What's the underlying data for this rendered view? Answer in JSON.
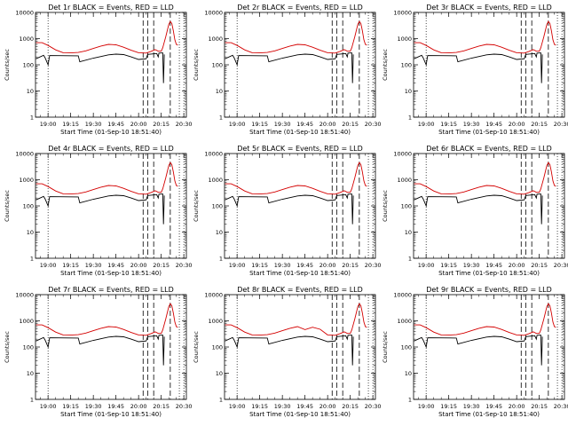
{
  "chart_data": [
    {
      "type": "line",
      "title": "Det 1r BLACK = Events, RED = LLD",
      "xlabel": "Start Time (01-Sep-10 18:51:40)",
      "ylabel": "Counts/sec",
      "variant": "normal"
    },
    {
      "type": "line",
      "title": "Det 2r BLACK = Events, RED = LLD",
      "xlabel": "Start Time (01-Sep-10 18:51:40)",
      "ylabel": "Counts/sec",
      "variant": "normal"
    },
    {
      "type": "line",
      "title": "Det 3r BLACK = Events, RED = LLD",
      "xlabel": "Start Time (01-Sep-10 18:51:40)",
      "ylabel": "Counts/sec",
      "variant": "normal"
    },
    {
      "type": "line",
      "title": "Det 4r BLACK = Events, RED = LLD",
      "xlabel": "Start Time (01-Sep-10 18:51:40)",
      "ylabel": "Counts/sec",
      "variant": "normal"
    },
    {
      "type": "line",
      "title": "Det 5r BLACK = Events, RED = LLD",
      "xlabel": "Start Time (01-Sep-10 18:51:40)",
      "ylabel": "Counts/sec",
      "variant": "normal"
    },
    {
      "type": "line",
      "title": "Det 6r BLACK = Events, RED = LLD",
      "xlabel": "Start Time (01-Sep-10 18:51:40)",
      "ylabel": "Counts/sec",
      "variant": "normal"
    },
    {
      "type": "line",
      "title": "Det 7r BLACK = Events, RED = LLD",
      "xlabel": "Start Time (01-Sep-10 18:51:40)",
      "ylabel": "Counts/sec",
      "variant": "normal"
    },
    {
      "type": "line",
      "title": "Det 8r BLACK = Events, RED = LLD",
      "xlabel": "Start Time (01-Sep-10 18:51:40)",
      "ylabel": "Counts/sec",
      "variant": "noisy"
    },
    {
      "type": "line",
      "title": "Det 9r BLACK = Events, RED = LLD",
      "xlabel": "Start Time (01-Sep-10 18:51:40)",
      "ylabel": "Counts/sec",
      "variant": "normal"
    }
  ],
  "shared": {
    "x_range": [
      "18:51:40",
      "20:31:40"
    ],
    "x_ticks": [
      "19:00",
      "19:15",
      "19:30",
      "19:45",
      "20:00",
      "20:15",
      "20:30"
    ],
    "x_tick_minutes": [
      1140,
      1155,
      1170,
      1185,
      1200,
      1215,
      1230
    ],
    "x_minor_step_minutes": 5,
    "y_scale": "log",
    "ylim": [
      1,
      10000
    ],
    "y_ticks": [
      "1",
      "10",
      "100",
      "1000",
      "10000"
    ],
    "y_tick_values": [
      1,
      10,
      100,
      1000,
      10000
    ],
    "grid": false,
    "colors": {
      "events": "#000000",
      "lld": "#d40000",
      "axis": "#000000"
    },
    "series": [
      {
        "name": "Events",
        "color": "#000000",
        "points": [
          [
            1132,
            170
          ],
          [
            1137,
            230
          ],
          [
            1138,
            185
          ],
          [
            1140,
            100
          ],
          [
            1141,
            225
          ],
          [
            1160,
            220
          ],
          [
            1161,
            130
          ],
          [
            1170,
            180
          ],
          [
            1180,
            240
          ],
          [
            1185,
            255
          ],
          [
            1190,
            245
          ],
          [
            1195,
            200
          ],
          [
            1200,
            160
          ],
          [
            1205,
            170
          ],
          [
            1206,
            250
          ],
          [
            1212,
            270
          ],
          [
            1213,
            200
          ],
          [
            1213.5,
            280
          ],
          [
            1216,
            285
          ],
          [
            1216.5,
            20
          ],
          [
            1217,
            250
          ]
        ]
      },
      {
        "name": "LLD",
        "color": "#d40000",
        "points": [
          [
            1132,
            700
          ],
          [
            1136,
            700
          ],
          [
            1140,
            550
          ],
          [
            1145,
            370
          ],
          [
            1150,
            290
          ],
          [
            1155,
            285
          ],
          [
            1160,
            295
          ],
          [
            1165,
            340
          ],
          [
            1170,
            420
          ],
          [
            1175,
            520
          ],
          [
            1180,
            600
          ],
          [
            1185,
            580
          ],
          [
            1190,
            470
          ],
          [
            1195,
            360
          ],
          [
            1200,
            290
          ],
          [
            1205,
            280
          ],
          [
            1208,
            320
          ],
          [
            1211,
            380
          ],
          [
            1213,
            330
          ],
          [
            1215,
            330
          ],
          [
            1216,
            450
          ],
          [
            1218,
            1200
          ],
          [
            1220,
            3500
          ],
          [
            1221,
            4500
          ],
          [
            1222,
            3800
          ],
          [
            1223,
            2000
          ],
          [
            1224,
            900
          ],
          [
            1225,
            600
          ],
          [
            1226,
            560
          ]
        ]
      }
    ],
    "vlines_dotted_minutes": [
      1140,
      1227,
      1230
    ],
    "vlines_dashed_minutes": [
      1203,
      1206,
      1210,
      1221
    ]
  }
}
